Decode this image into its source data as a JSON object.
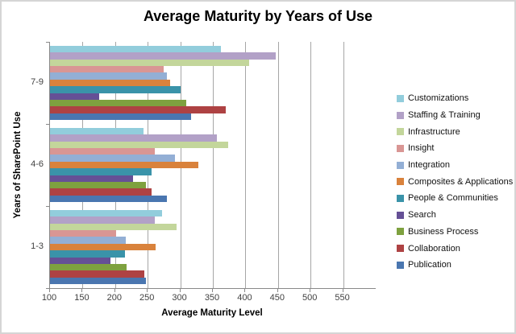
{
  "chart_data": {
    "type": "bar",
    "orientation": "horizontal",
    "title": "Average Maturity by Years of Use",
    "xlabel": "Average Maturity Level",
    "ylabel": "Years of SharePoint Use",
    "xlim": [
      100,
      600
    ],
    "xticks": [
      100,
      150,
      200,
      250,
      300,
      350,
      400,
      450,
      500,
      550
    ],
    "grid": true,
    "legend_position": "right",
    "categories": [
      "7-9",
      "4-6",
      "1-3"
    ],
    "series": [
      {
        "name": "Customizations",
        "color": "#92CDDC",
        "values": [
          362,
          244,
          272
        ]
      },
      {
        "name": "Staffing & Training",
        "color": "#B2A1C7",
        "values": [
          446,
          356,
          261
        ]
      },
      {
        "name": "Infrastructure",
        "color": "#C3D69B",
        "values": [
          406,
          374,
          294
        ]
      },
      {
        "name": "Insight",
        "color": "#D99694",
        "values": [
          275,
          261,
          202
        ]
      },
      {
        "name": "Integration",
        "color": "#93AFD5",
        "values": [
          279,
          292,
          216
        ]
      },
      {
        "name": "Composites & Applications",
        "color": "#D9823C",
        "values": [
          285,
          328,
          262
        ]
      },
      {
        "name": "People & Communities",
        "color": "#3A93A9",
        "values": [
          301,
          256,
          215
        ]
      },
      {
        "name": "Search",
        "color": "#655096",
        "values": [
          175,
          227,
          193
        ]
      },
      {
        "name": "Business Process",
        "color": "#7EA13F",
        "values": [
          309,
          247,
          218
        ]
      },
      {
        "name": "Collaboration",
        "color": "#AE4243",
        "values": [
          370,
          256,
          245
        ]
      },
      {
        "name": "Publication",
        "color": "#4A76B0",
        "values": [
          316,
          279,
          247
        ]
      }
    ],
    "colors": {
      "gridline": "#A6A6A6",
      "axis": "#898989",
      "tick_text": "#3F3F3F",
      "title_text": "#000000"
    }
  }
}
